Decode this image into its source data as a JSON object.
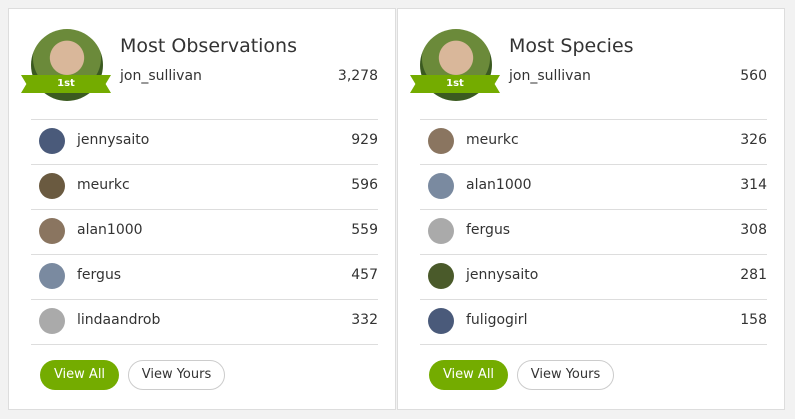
{
  "panels": [
    {
      "title": "Most Observations",
      "leader": {
        "rank": "1st",
        "name": "jon_sullivan",
        "count": "3,278"
      },
      "rows": [
        {
          "name": "jennysaito",
          "count": "929"
        },
        {
          "name": "meurkc",
          "count": "596"
        },
        {
          "name": "alan1000",
          "count": "559"
        },
        {
          "name": "fergus",
          "count": "457"
        },
        {
          "name": "lindaandrob",
          "count": "332"
        }
      ],
      "buttons": [
        "View All",
        "View Yours"
      ]
    },
    {
      "title": "Most Species",
      "leader": {
        "rank": "1st",
        "name": "jon_sullivan",
        "count": "560"
      },
      "rows": [
        {
          "name": "meurkc",
          "count": "326"
        },
        {
          "name": "alan1000",
          "count": "314"
        },
        {
          "name": "fergus",
          "count": "308"
        },
        {
          "name": "jennysaito",
          "count": "281"
        },
        {
          "name": "fuligogirl",
          "count": "158"
        }
      ],
      "buttons": [
        "View All",
        "View Yours"
      ]
    }
  ]
}
